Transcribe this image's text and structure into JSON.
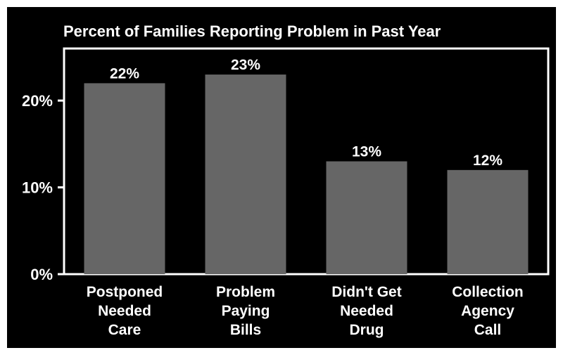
{
  "chart_data": {
    "type": "bar",
    "title": "Percent of Families Reporting Problem in Past Year",
    "categories": [
      [
        "Postponed",
        "Needed",
        "Care"
      ],
      [
        "Problem",
        "Paying",
        "Bills"
      ],
      [
        "Didn't Get",
        "Needed",
        "Drug"
      ],
      [
        "Collection",
        "Agency",
        "Call"
      ]
    ],
    "values": [
      22,
      23,
      13,
      12
    ],
    "value_labels": [
      "22%",
      "23%",
      "13%",
      "12%"
    ],
    "ylim": [
      0,
      26
    ],
    "yticks": [
      0,
      10,
      20
    ],
    "ytick_labels": [
      "0%",
      "10%",
      "20%"
    ],
    "xlabel": "",
    "ylabel": "",
    "grid": false,
    "colors": {
      "background": "#000000",
      "bar": "#666666",
      "axis": "#ffffff",
      "text": "#ffffff"
    }
  }
}
